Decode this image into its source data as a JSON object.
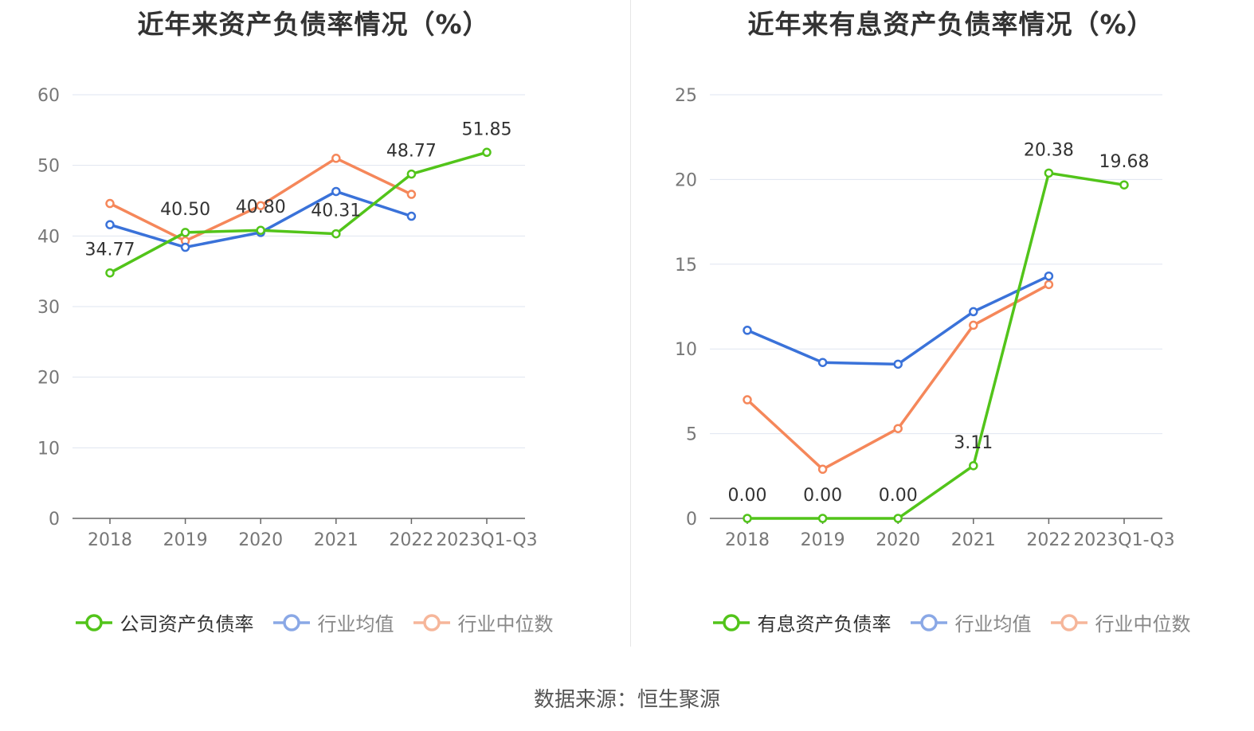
{
  "colors": {
    "company": "#52c41a",
    "industry_avg": "#3a72d9",
    "industry_median": "#f5875a",
    "grid": "#dfe5f0",
    "axis": "#666666",
    "legend_avg_inactive": "#8aa8e6",
    "legend_median_inactive": "#f6b69a"
  },
  "source": "数据来源：恒生聚源",
  "chart_data": [
    {
      "type": "line",
      "title": "近年来资产负债率情况（%）",
      "categories": [
        "2018",
        "2019",
        "2020",
        "2021",
        "2022",
        "2023Q1-Q3"
      ],
      "ylim": [
        0,
        60
      ],
      "yticks": [
        0,
        10,
        20,
        30,
        40,
        50,
        60
      ],
      "grid": true,
      "legend_position": "bottom",
      "series": [
        {
          "name": "公司资产负债率",
          "key": "company",
          "values": [
            34.77,
            40.5,
            40.8,
            40.31,
            48.77,
            51.85
          ],
          "labels": [
            "34.77",
            "40.50",
            "40.80",
            "40.31",
            "48.77",
            "51.85"
          ]
        },
        {
          "name": "行业均值",
          "key": "industry_avg",
          "values": [
            41.6,
            38.4,
            40.5,
            46.3,
            42.8,
            null
          ]
        },
        {
          "name": "行业中位数",
          "key": "industry_median",
          "values": [
            44.6,
            39.3,
            44.3,
            51.0,
            45.9,
            null
          ]
        }
      ]
    },
    {
      "type": "line",
      "title": "近年来有息资产负债率情况（%）",
      "categories": [
        "2018",
        "2019",
        "2020",
        "2021",
        "2022",
        "2023Q1-Q3"
      ],
      "ylim": [
        0,
        25
      ],
      "yticks": [
        0,
        5,
        10,
        15,
        20,
        25
      ],
      "grid": true,
      "legend_position": "bottom",
      "series": [
        {
          "name": "有息资产负债率",
          "key": "company",
          "values": [
            0.0,
            0.0,
            0.0,
            3.11,
            20.38,
            19.68
          ],
          "labels": [
            "0.00",
            "0.00",
            "0.00",
            "3.11",
            "20.38",
            "19.68"
          ]
        },
        {
          "name": "行业均值",
          "key": "industry_avg",
          "values": [
            11.1,
            9.2,
            9.1,
            12.2,
            14.3,
            null
          ]
        },
        {
          "name": "行业中位数",
          "key": "industry_median",
          "values": [
            7.0,
            2.9,
            5.3,
            11.4,
            13.8,
            null
          ]
        }
      ]
    }
  ]
}
